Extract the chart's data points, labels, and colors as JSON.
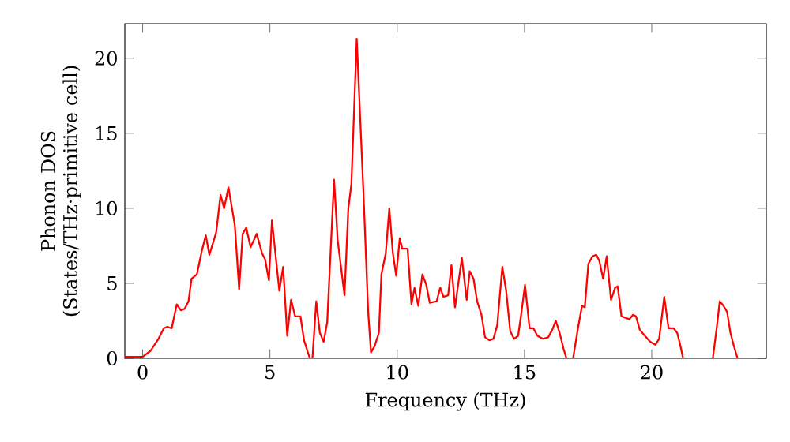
{
  "chart_data": {
    "type": "line",
    "xlabel": "Frequency (THz)",
    "ylabel": "Phonon DOS (States/THz·primitive cell)",
    "xlim": [
      -0.7,
      24.5
    ],
    "ylim": [
      0,
      22.3
    ],
    "xticks": [
      0,
      5,
      10,
      15,
      20
    ],
    "yticks": [
      0,
      5,
      10,
      15,
      20
    ],
    "marker": "none",
    "line_style": "solid",
    "series": [
      {
        "color": "#ff0000",
        "x": [
          -0.7,
          0,
          0.31,
          0.62,
          0.83,
          0.97,
          1.14,
          1.34,
          1.5,
          1.65,
          1.8,
          1.92,
          2.13,
          2.33,
          2.48,
          2.62,
          2.89,
          3.06,
          3.2,
          3.37,
          3.62,
          3.79,
          3.93,
          4.07,
          4.24,
          4.48,
          4.69,
          4.81,
          4.96,
          5.08,
          5.27,
          5.37,
          5.52,
          5.68,
          5.83,
          5.99,
          6.2,
          6.34,
          6.47,
          6.57,
          6.67,
          6.82,
          6.96,
          7.11,
          7.25,
          7.52,
          7.66,
          7.93,
          8.08,
          8.2,
          8.41,
          8.66,
          8.86,
          8.97,
          9.11,
          9.28,
          9.38,
          9.55,
          9.69,
          9.83,
          9.96,
          10.1,
          10.2,
          10.31,
          10.41,
          10.56,
          10.68,
          10.83,
          10.99,
          11.14,
          11.28,
          11.55,
          11.69,
          11.82,
          12.0,
          12.13,
          12.27,
          12.54,
          12.73,
          12.85,
          13.0,
          13.14,
          13.31,
          13.45,
          13.62,
          13.78,
          13.93,
          14.13,
          14.28,
          14.44,
          14.59,
          14.75,
          14.86,
          15.02,
          15.2,
          15.35,
          15.51,
          15.72,
          15.93,
          16.09,
          16.23,
          16.38,
          16.54,
          16.65,
          16.91,
          17.1,
          17.26,
          17.37,
          17.51,
          17.67,
          17.82,
          17.94,
          18.09,
          18.23,
          18.4,
          18.56,
          18.66,
          18.81,
          18.97,
          19.12,
          19.26,
          19.38,
          19.53,
          19.73,
          19.94,
          20.14,
          20.29,
          20.49,
          20.66,
          20.86,
          21.0,
          21.13,
          21.23,
          22.4,
          22.55,
          22.67,
          22.82,
          22.96,
          23.09,
          23.23,
          23.37,
          24.47
        ],
        "values": [
          0.1,
          0.1,
          0.5,
          1.3,
          2.0,
          2.1,
          2.0,
          3.6,
          3.2,
          3.3,
          3.8,
          5.3,
          5.6,
          7.2,
          8.2,
          6.9,
          8.4,
          10.9,
          10.0,
          11.4,
          8.9,
          4.6,
          8.3,
          8.7,
          7.4,
          8.3,
          7.0,
          6.6,
          5.2,
          9.2,
          6.1,
          4.5,
          6.1,
          1.5,
          3.9,
          2.8,
          2.8,
          1.2,
          0.5,
          0,
          0,
          3.8,
          1.7,
          1.1,
          2.4,
          11.9,
          7.9,
          4.2,
          10.0,
          11.6,
          21.3,
          11.6,
          3.1,
          0.4,
          0.8,
          1.7,
          5.6,
          7.0,
          10.0,
          7.0,
          5.5,
          8.0,
          7.3,
          7.3,
          7.3,
          3.6,
          4.7,
          3.5,
          5.6,
          4.9,
          3.7,
          3.8,
          4.7,
          4.1,
          4.2,
          6.2,
          3.4,
          6.7,
          3.9,
          5.8,
          5.3,
          3.8,
          2.9,
          1.4,
          1.2,
          1.3,
          2.2,
          6.1,
          4.5,
          1.8,
          1.3,
          1.5,
          2.8,
          4.9,
          2.0,
          2.0,
          1.5,
          1.3,
          1.4,
          1.9,
          2.5,
          1.7,
          0.6,
          0,
          0,
          2.0,
          3.5,
          3.4,
          6.3,
          6.8,
          6.9,
          6.5,
          5.3,
          6.8,
          3.9,
          4.7,
          4.8,
          2.8,
          2.7,
          2.6,
          2.9,
          2.8,
          1.9,
          1.5,
          1.1,
          0.9,
          1.3,
          4.1,
          2.0,
          2.0,
          1.7,
          0.8,
          0,
          0,
          2.0,
          3.8,
          3.5,
          3.1,
          1.7,
          0.8,
          0,
          0
        ]
      }
    ]
  }
}
